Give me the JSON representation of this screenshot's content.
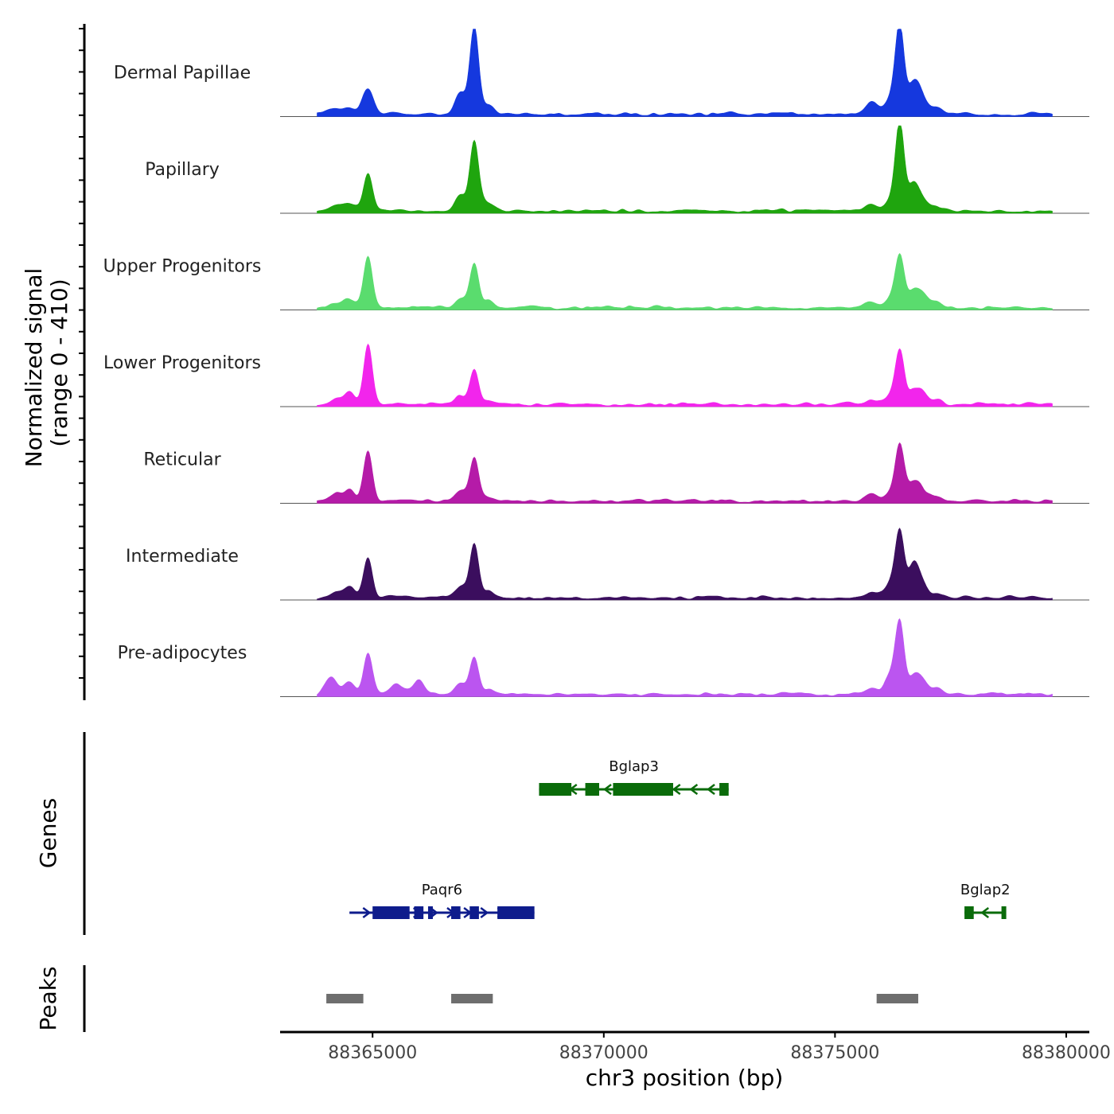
{
  "chart_data": {
    "type": "area",
    "genome_track": true,
    "x_axis": {
      "label": "chr3 position (bp)",
      "range": [
        88363000,
        88380500
      ],
      "ticks": [
        88365000,
        88370000,
        88375000,
        88380000
      ],
      "tick_labels": [
        "88365000",
        "88370000",
        "88375000",
        "88380000"
      ]
    },
    "y_axis": {
      "label_line1": "Normalized signal",
      "label_line2": "(range 0 - 410)",
      "range": [
        0,
        410
      ]
    },
    "signal_extent": [
      88363800,
      88379700
    ],
    "tracks": [
      {
        "name": "Dermal Papillae",
        "color": "#1538DE",
        "peaks": [
          [
            88364000,
            10
          ],
          [
            88364200,
            20
          ],
          [
            88364500,
            30
          ],
          [
            88364900,
            120
          ],
          [
            88366900,
            100
          ],
          [
            88367200,
            410
          ],
          [
            88367500,
            40
          ],
          [
            88375800,
            60
          ],
          [
            88376200,
            70
          ],
          [
            88376400,
            410
          ],
          [
            88376700,
            150
          ],
          [
            88376900,
            60
          ],
          [
            88377200,
            30
          ]
        ]
      },
      {
        "name": "Papillary",
        "color": "#1FA50E",
        "peaks": [
          [
            88364200,
            20
          ],
          [
            88364500,
            35
          ],
          [
            88364900,
            170
          ],
          [
            88366900,
            80
          ],
          [
            88367200,
            330
          ],
          [
            88367500,
            40
          ],
          [
            88375800,
            30
          ],
          [
            88376200,
            50
          ],
          [
            88376400,
            410
          ],
          [
            88376700,
            120
          ],
          [
            88376900,
            40
          ],
          [
            88377200,
            20
          ]
        ]
      },
      {
        "name": "Upper Progenitors",
        "color": "#5ADC6E",
        "peaks": [
          [
            88364200,
            15
          ],
          [
            88364500,
            40
          ],
          [
            88364900,
            240
          ],
          [
            88366900,
            40
          ],
          [
            88367200,
            210
          ],
          [
            88367500,
            30
          ],
          [
            88375800,
            20
          ],
          [
            88376200,
            40
          ],
          [
            88376400,
            240
          ],
          [
            88376700,
            70
          ],
          [
            88376900,
            50
          ],
          [
            88377200,
            25
          ]
        ]
      },
      {
        "name": "Lower Progenitors",
        "color": "#F225EC",
        "peaks": [
          [
            88364200,
            25
          ],
          [
            88364500,
            60
          ],
          [
            88364900,
            280
          ],
          [
            88366900,
            40
          ],
          [
            88367200,
            160
          ],
          [
            88367500,
            20
          ],
          [
            88375800,
            20
          ],
          [
            88376200,
            40
          ],
          [
            88376400,
            250
          ],
          [
            88376700,
            60
          ],
          [
            88376900,
            50
          ],
          [
            88377200,
            20
          ]
        ]
      },
      {
        "name": "Reticular",
        "color": "#B51BA8",
        "peaks": [
          [
            88364200,
            30
          ],
          [
            88364500,
            50
          ],
          [
            88364900,
            240
          ],
          [
            88366900,
            50
          ],
          [
            88367200,
            200
          ],
          [
            88367500,
            20
          ],
          [
            88375800,
            30
          ],
          [
            88376200,
            40
          ],
          [
            88376400,
            260
          ],
          [
            88376700,
            90
          ],
          [
            88376900,
            40
          ],
          [
            88377200,
            20
          ]
        ]
      },
      {
        "name": "Intermediate",
        "color": "#3B0E5E",
        "peaks": [
          [
            88364200,
            30
          ],
          [
            88364500,
            50
          ],
          [
            88364900,
            190
          ],
          [
            88366900,
            50
          ],
          [
            88367200,
            250
          ],
          [
            88367500,
            30
          ],
          [
            88375800,
            30
          ],
          [
            88376200,
            60
          ],
          [
            88376400,
            300
          ],
          [
            88376700,
            150
          ],
          [
            88376900,
            50
          ],
          [
            88377200,
            20
          ]
        ]
      },
      {
        "name": "Pre-adipocytes",
        "color": "#BB55F0",
        "peaks": [
          [
            88364100,
            80
          ],
          [
            88364500,
            60
          ],
          [
            88364900,
            190
          ],
          [
            88365500,
            50
          ],
          [
            88366000,
            70
          ],
          [
            88366900,
            50
          ],
          [
            88367200,
            170
          ],
          [
            88367500,
            20
          ],
          [
            88375800,
            30
          ],
          [
            88376200,
            90
          ],
          [
            88376400,
            330
          ],
          [
            88376700,
            80
          ],
          [
            88376900,
            60
          ],
          [
            88377200,
            20
          ]
        ]
      }
    ],
    "genes_track": {
      "label": "Genes",
      "genes": [
        {
          "name": "Bglap3",
          "strand": "-",
          "color": "#0A6B0A",
          "start": 88368600,
          "end": 88372700,
          "row": 0,
          "exons": [
            [
              88368600,
              88369300
            ],
            [
              88369600,
              88369900
            ],
            [
              88370200,
              88371500
            ],
            [
              88372500,
              88372700
            ]
          ]
        },
        {
          "name": "Paqr6",
          "strand": "+",
          "color": "#0E1C8C",
          "start": 88364500,
          "end": 88368500,
          "row": 1,
          "exons": [
            [
              88365000,
              88365800
            ],
            [
              88365900,
              88366100
            ],
            [
              88366200,
              88366300
            ],
            [
              88366700,
              88366900
            ],
            [
              88367100,
              88367300
            ],
            [
              88367700,
              88368500
            ]
          ]
        },
        {
          "name": "Bglap2",
          "strand": "-",
          "color": "#0A6B0A",
          "start": 88377800,
          "end": 88378700,
          "row": 1,
          "exons": [
            [
              88377800,
              88378000
            ],
            [
              88378600,
              88378700
            ]
          ]
        }
      ]
    },
    "peaks_track": {
      "label": "Peaks",
      "color": "#6E6E6E",
      "regions": [
        [
          88364000,
          88364800
        ],
        [
          88366700,
          88367600
        ],
        [
          88375900,
          88376800
        ]
      ]
    }
  }
}
